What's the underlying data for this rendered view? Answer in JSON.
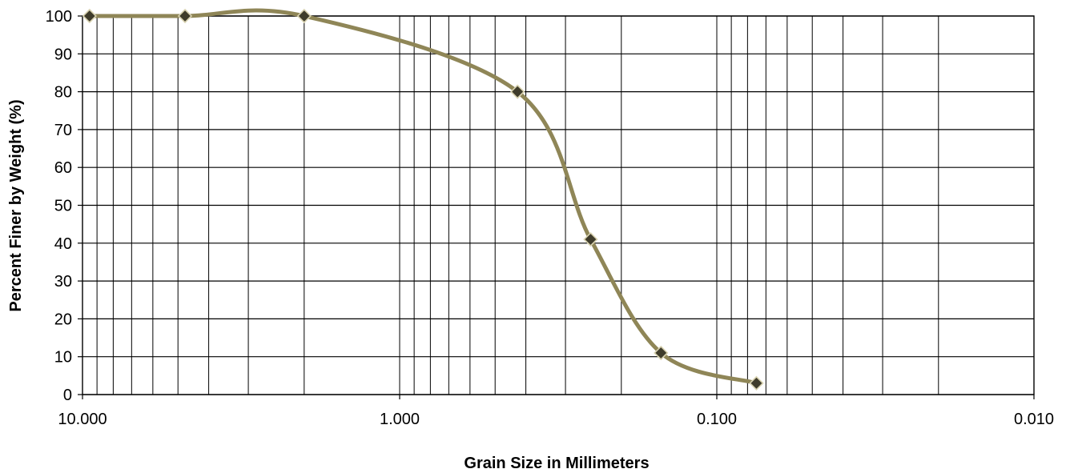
{
  "chart_data": {
    "type": "line",
    "title": "",
    "xlabel": "Grain Size in Millimeters",
    "ylabel": "Percent Finer by Weight (%)",
    "x_scale": "log",
    "x_reversed": true,
    "xlim": [
      10,
      0.01
    ],
    "ylim": [
      0,
      100
    ],
    "x_ticks": [
      10,
      1,
      0.1,
      0.01
    ],
    "x_tick_labels": [
      "10.000",
      "1.000",
      "0.100",
      "0.010"
    ],
    "y_ticks": [
      0,
      10,
      20,
      30,
      40,
      50,
      60,
      70,
      80,
      90,
      100
    ],
    "y_tick_labels": [
      "0",
      "10",
      "20",
      "30",
      "40",
      "50",
      "60",
      "70",
      "80",
      "90",
      "100"
    ],
    "grid": true,
    "series": [
      {
        "color": "#8f8657",
        "marker_color": "#3f3c2b",
        "marker": "diamond",
        "smooth": true,
        "x": [
          9.5,
          4.75,
          2.0,
          0.425,
          0.25,
          0.15,
          0.075
        ],
        "y": [
          100,
          100,
          100,
          80,
          41,
          11,
          3
        ]
      }
    ]
  }
}
